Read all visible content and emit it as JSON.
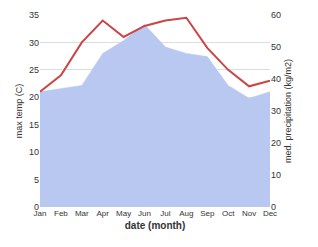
{
  "chart_data": {
    "type": "line",
    "categories": [
      "Jan",
      "Feb",
      "Mar",
      "Apr",
      "May",
      "Jun",
      "Jul",
      "Aug",
      "Sep",
      "Oct",
      "Nov",
      "Dec"
    ],
    "series": [
      {
        "type": "area",
        "axis": "y2",
        "color": "#b8c8f0",
        "values": [
          36,
          37,
          38,
          48,
          52,
          57,
          50,
          48,
          47,
          38,
          34,
          36
        ]
      },
      {
        "type": "line",
        "color": "#cc4444",
        "values": [
          21,
          24,
          30,
          34,
          31,
          33,
          34,
          34.5,
          29,
          25,
          22,
          23
        ]
      }
    ],
    "xlabel": "date (month)",
    "ylabel": "max temp (C)",
    "y2label": "med. precipitation (kg/m2)",
    "ylim": [
      0,
      35
    ],
    "yticks": [
      0,
      5,
      10,
      15,
      20,
      25,
      30,
      35
    ],
    "y2lim": [
      0,
      60
    ],
    "y2ticks": [
      0,
      10,
      20,
      30,
      40,
      50,
      60
    ],
    "grid": true
  }
}
